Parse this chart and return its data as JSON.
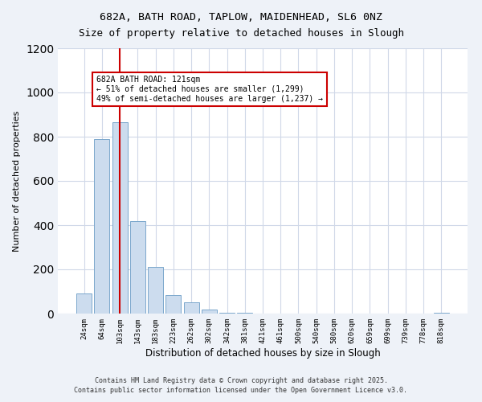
{
  "title_line1": "682A, BATH ROAD, TAPLOW, MAIDENHEAD, SL6 0NZ",
  "title_line2": "Size of property relative to detached houses in Slough",
  "xlabel": "Distribution of detached houses by size in Slough",
  "ylabel": "Number of detached properties",
  "categories": [
    "24sqm",
    "64sqm",
    "103sqm",
    "143sqm",
    "183sqm",
    "223sqm",
    "262sqm",
    "302sqm",
    "342sqm",
    "381sqm",
    "421sqm",
    "461sqm",
    "500sqm",
    "540sqm",
    "580sqm",
    "620sqm",
    "659sqm",
    "699sqm",
    "739sqm",
    "778sqm",
    "818sqm"
  ],
  "values": [
    90,
    790,
    865,
    420,
    210,
    85,
    50,
    20,
    5,
    5,
    0,
    0,
    0,
    0,
    0,
    0,
    0,
    0,
    0,
    0,
    5
  ],
  "bar_color": "#ccdcee",
  "bar_edge_color": "#7ba7cc",
  "vline_x_index": 2.0,
  "vline_color": "#cc0000",
  "annotation_text": "682A BATH ROAD: 121sqm\n← 51% of detached houses are smaller (1,299)\n49% of semi-detached houses are larger (1,237) →",
  "annotation_box_color": "#cc0000",
  "ylim": [
    0,
    1200
  ],
  "yticks": [
    0,
    200,
    400,
    600,
    800,
    1000,
    1200
  ],
  "background_color": "#eef2f8",
  "plot_bg_color": "#ffffff",
  "grid_color": "#d0d8e8",
  "footer_line1": "Contains HM Land Registry data © Crown copyright and database right 2025.",
  "footer_line2": "Contains public sector information licensed under the Open Government Licence v3.0."
}
